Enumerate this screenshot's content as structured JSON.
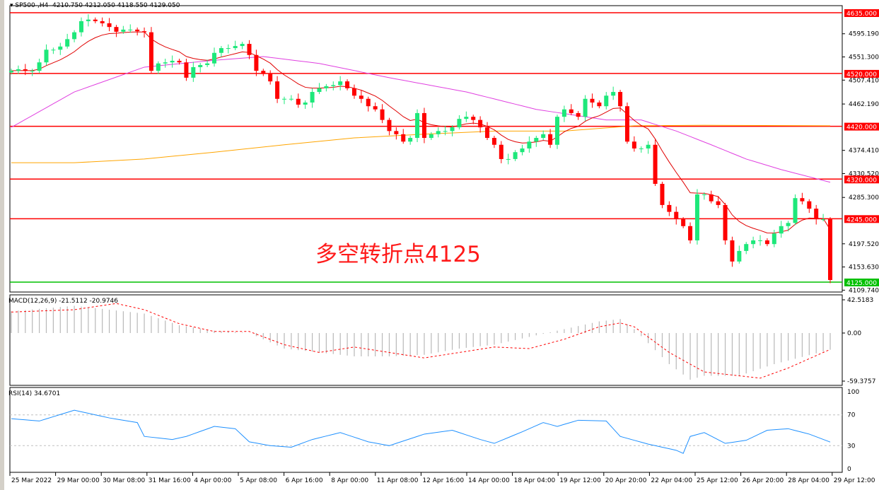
{
  "header": {
    "symbol": "SP500-,H4",
    "open": "4210.750",
    "high": "4212.050",
    "low": "4118.550",
    "close": "4129.050"
  },
  "annotation": "多空转折点4125",
  "chart_data": {
    "type": "candlestick",
    "symbol": "SP500-,H4",
    "closes": [
      4525,
      4528,
      4525,
      4525,
      4541,
      4565,
      4565,
      4571,
      4585,
      4598,
      4619,
      4622,
      4619,
      4615,
      4608,
      4599,
      4603,
      4603,
      4600,
      4598,
      4525,
      4539,
      4541,
      4544,
      4541,
      4512,
      4532,
      4536,
      4539,
      4559,
      4568,
      4568,
      4572,
      4576,
      4555,
      4525,
      4519,
      4505,
      4472,
      4472,
      4472,
      4461,
      4465,
      4485,
      4492,
      4496,
      4498,
      4505,
      4492,
      4478,
      4472,
      4458,
      4452,
      4432,
      4411,
      4405,
      4391,
      4398,
      4445,
      4398,
      4405,
      4411,
      4411,
      4418,
      4434,
      4438,
      4432,
      4418,
      4398,
      4385,
      4358,
      4358,
      4371,
      4378,
      4391,
      4398,
      4405,
      4385,
      4438,
      4452,
      4445,
      4438,
      4472,
      4465,
      4458,
      4478,
      4485,
      4458,
      4391,
      4378,
      4378,
      4385,
      4311,
      4271,
      4258,
      4244,
      4231,
      4204,
      4291,
      4291,
      4278,
      4271,
      4204,
      4164,
      4184,
      4197,
      4204,
      4204,
      4197,
      4217,
      4231,
      4237,
      4284,
      4278,
      4264,
      4244,
      4244,
      4129
    ],
    "bull_color": "#1de87a",
    "bear_color": "#ff0000",
    "price_axis": [
      "4635.000",
      "4595.190",
      "4551.300",
      "4520.000",
      "4507.410",
      "4462.190",
      "4420.000",
      "4374.410",
      "4330.520",
      "4320.000",
      "4285.300",
      "4245.000",
      "4197.520",
      "4153.630",
      "4125.000",
      "4109.740"
    ],
    "ylim": [
      4109.74,
      4645
    ],
    "levels": [
      {
        "value": 4635,
        "label": "4635.000",
        "color": "#ff0000"
      },
      {
        "value": 4520,
        "label": "4520.000",
        "color": "#ff0000"
      },
      {
        "value": 4420,
        "label": "4420.000",
        "color": "#ff0000"
      },
      {
        "value": 4320,
        "label": "4320.000",
        "color": "#ff0000"
      },
      {
        "value": 4245,
        "label": "4245.000",
        "color": "#ff0000"
      },
      {
        "value": 4125,
        "label": "4125.000",
        "color": "#00c000"
      }
    ],
    "ma_magenta": {
      "color": "#e040e0",
      "points": [
        [
          0,
          4418
        ],
        [
          9,
          4485
        ],
        [
          19,
          4532
        ],
        [
          29,
          4545
        ],
        [
          36,
          4552
        ],
        [
          44,
          4539
        ],
        [
          54,
          4512
        ],
        [
          65,
          4485
        ],
        [
          75,
          4452
        ],
        [
          85,
          4432
        ],
        [
          90,
          4432
        ],
        [
          95,
          4411
        ],
        [
          100,
          4385
        ],
        [
          105,
          4358
        ],
        [
          110,
          4338
        ],
        [
          117,
          4314
        ]
      ]
    },
    "ma_orange": {
      "color": "#ffa500",
      "points": [
        [
          0,
          4351
        ],
        [
          9,
          4351
        ],
        [
          19,
          4358
        ],
        [
          29,
          4371
        ],
        [
          39,
          4385
        ],
        [
          49,
          4398
        ],
        [
          59,
          4405
        ],
        [
          69,
          4411
        ],
        [
          79,
          4411
        ],
        [
          89,
          4421
        ],
        [
          99,
          4422
        ],
        [
          117,
          4421
        ]
      ]
    },
    "ma_red": {
      "color": "#e00000",
      "period": 10
    },
    "x_labels": [
      "25 Mar 2022",
      "29 Mar 00:00",
      "30 Mar 08:00",
      "31 Mar 16:00",
      "4 Apr 00:00",
      "5 Apr 08:00",
      "6 Apr 16:00",
      "8 Apr 00:00",
      "11 Apr 08:00",
      "12 Apr 16:00",
      "14 Apr 00:00",
      "18 Apr 04:00",
      "19 Apr 12:00",
      "20 Apr 20:00",
      "22 Apr 04:00",
      "25 Apr 12:00",
      "26 Apr 20:00",
      "28 Apr 04:00",
      "29 Apr 12:00"
    ],
    "macd": {
      "label": "MACD(12,26,9) -21.5112 -20.9746",
      "axis": [
        "42.5183",
        "0.00",
        "-59.3757"
      ],
      "ylim": [
        -59.3757,
        42.5183
      ],
      "main": [
        [
          0,
          28
        ],
        [
          9,
          35
        ],
        [
          19,
          25
        ],
        [
          24,
          10
        ],
        [
          29,
          3
        ],
        [
          34,
          0
        ],
        [
          39,
          -20
        ],
        [
          44,
          -25
        ],
        [
          49,
          -30
        ],
        [
          54,
          -30
        ],
        [
          59,
          -28
        ],
        [
          64,
          -20
        ],
        [
          69,
          -15
        ],
        [
          74,
          -5
        ],
        [
          79,
          5
        ],
        [
          84,
          15
        ],
        [
          87,
          18
        ],
        [
          89,
          5
        ],
        [
          94,
          -40
        ],
        [
          97,
          -60
        ],
        [
          99,
          -55
        ],
        [
          104,
          -55
        ],
        [
          109,
          -40
        ],
        [
          117,
          -21.5
        ]
      ],
      "signal": [
        [
          0,
          27
        ],
        [
          9,
          30
        ],
        [
          15,
          38
        ],
        [
          19,
          30
        ],
        [
          24,
          12
        ],
        [
          29,
          2
        ],
        [
          34,
          2
        ],
        [
          39,
          -15
        ],
        [
          44,
          -25
        ],
        [
          49,
          -18
        ],
        [
          54,
          -25
        ],
        [
          59,
          -32
        ],
        [
          64,
          -25
        ],
        [
          69,
          -18
        ],
        [
          74,
          -20
        ],
        [
          79,
          -8
        ],
        [
          84,
          8
        ],
        [
          87,
          13
        ],
        [
          89,
          8
        ],
        [
          94,
          -25
        ],
        [
          99,
          -50
        ],
        [
          104,
          -55
        ],
        [
          107,
          -58
        ],
        [
          111,
          -45
        ],
        [
          117,
          -21
        ]
      ]
    },
    "rsi": {
      "label": "RSI(14) 34.6701",
      "axis": [
        "100",
        "70",
        "30",
        "0"
      ],
      "ylim": [
        0,
        100
      ],
      "levels": [
        70,
        30
      ],
      "color": "#1e90ff",
      "points": [
        [
          0,
          65
        ],
        [
          4,
          62
        ],
        [
          9,
          76
        ],
        [
          14,
          66
        ],
        [
          18,
          60
        ],
        [
          19,
          42
        ],
        [
          23,
          38
        ],
        [
          25,
          42
        ],
        [
          29,
          55
        ],
        [
          32,
          52
        ],
        [
          34,
          35
        ],
        [
          37,
          30
        ],
        [
          40,
          28
        ],
        [
          43,
          38
        ],
        [
          47,
          47
        ],
        [
          51,
          35
        ],
        [
          54,
          30
        ],
        [
          59,
          45
        ],
        [
          63,
          50
        ],
        [
          67,
          38
        ],
        [
          69,
          33
        ],
        [
          73,
          48
        ],
        [
          76,
          60
        ],
        [
          78,
          55
        ],
        [
          81,
          63
        ],
        [
          85,
          62
        ],
        [
          87,
          42
        ],
        [
          91,
          32
        ],
        [
          95,
          24
        ],
        [
          96,
          20
        ],
        [
          97,
          42
        ],
        [
          99,
          47
        ],
        [
          102,
          33
        ],
        [
          105,
          37
        ],
        [
          108,
          50
        ],
        [
          111,
          52
        ],
        [
          114,
          45
        ],
        [
          117,
          34.7
        ]
      ]
    }
  }
}
